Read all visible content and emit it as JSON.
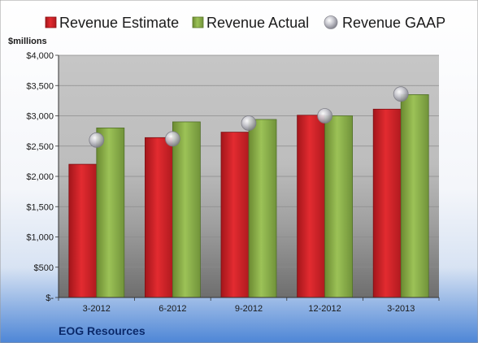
{
  "chart_data": {
    "type": "bar",
    "unit_label": "$millions",
    "company": "EOG Resources",
    "categories": [
      "3-2012",
      "6-2012",
      "9-2012",
      "12-2012",
      "3-2013"
    ],
    "series": [
      {
        "name": "Revenue Estimate",
        "kind": "bar",
        "color": "#d42026",
        "values": [
          2200,
          2640,
          2730,
          3010,
          3110
        ]
      },
      {
        "name": "Revenue Actual",
        "kind": "bar",
        "color": "#8db04a",
        "values": [
          2800,
          2900,
          2940,
          3000,
          3350
        ]
      },
      {
        "name": "Revenue GAAP",
        "kind": "marker",
        "color": "#b8b8c0",
        "values": [
          2600,
          2620,
          2880,
          3000,
          3360
        ]
      }
    ],
    "y_ticks": [
      "$-",
      "$500",
      "$1,000",
      "$1,500",
      "$2,000",
      "$2,500",
      "$3,000",
      "$3,500",
      "$4,000"
    ],
    "ylim": [
      0,
      4000
    ],
    "grid": true,
    "legend": "top"
  }
}
